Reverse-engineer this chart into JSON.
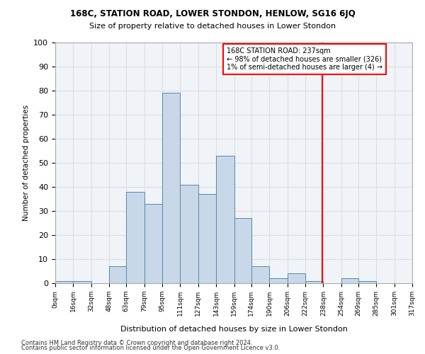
{
  "title1": "168C, STATION ROAD, LOWER STONDON, HENLOW, SG16 6JQ",
  "title2": "Size of property relative to detached houses in Lower Stondon",
  "xlabel": "Distribution of detached houses by size in Lower Stondon",
  "ylabel": "Number of detached properties",
  "footer1": "Contains HM Land Registry data © Crown copyright and database right 2024.",
  "footer2": "Contains public sector information licensed under the Open Government Licence v3.0.",
  "bin_labels": [
    "0sqm",
    "16sqm",
    "32sqm",
    "48sqm",
    "63sqm",
    "79sqm",
    "95sqm",
    "111sqm",
    "127sqm",
    "143sqm",
    "159sqm",
    "174sqm",
    "190sqm",
    "206sqm",
    "222sqm",
    "238sqm",
    "254sqm",
    "269sqm",
    "285sqm",
    "301sqm",
    "317sqm"
  ],
  "bar_values": [
    1,
    1,
    0,
    7,
    38,
    33,
    79,
    41,
    37,
    53,
    27,
    7,
    2,
    4,
    1,
    0,
    2,
    1,
    0,
    0
  ],
  "bar_color": "#c8d8e8",
  "bar_edge_color": "#5588aa",
  "annotation_label": "168C STATION ROAD: 237sqm",
  "annotation_line1": "← 98% of detached houses are smaller (326)",
  "annotation_line2": "1% of semi-detached houses are larger (4) →",
  "vline_x": 237,
  "vline_color": "red",
  "ylim": [
    0,
    100
  ],
  "yticks": [
    0,
    10,
    20,
    30,
    40,
    50,
    60,
    70,
    80,
    90,
    100
  ],
  "bin_edges": [
    0,
    16,
    32,
    48,
    63,
    79,
    95,
    111,
    127,
    143,
    159,
    174,
    190,
    206,
    222,
    238,
    254,
    269,
    285,
    301,
    317
  ],
  "grid_color": "#dddddd",
  "bg_color": "#f0f4f8"
}
